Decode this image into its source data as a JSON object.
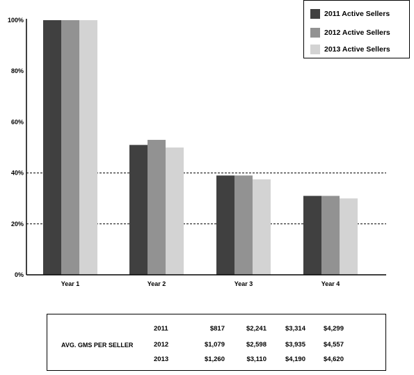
{
  "chart_data": {
    "type": "bar",
    "categories": [
      "Year 1",
      "Year 2",
      "Year 3",
      "Year 4"
    ],
    "ylim": [
      0,
      100
    ],
    "yticks": [
      "0%",
      "20%",
      "40%",
      "60%",
      "80%",
      "100%"
    ],
    "grid_lines_at": [
      20,
      40
    ],
    "legend_position": "top-right",
    "series": [
      {
        "name": "2011 Active Sellers",
        "color": "#404040",
        "values": [
          100,
          51,
          39,
          31
        ]
      },
      {
        "name": "2012  Active Sellers",
        "color": "#929292",
        "values": [
          100,
          53,
          39,
          31
        ]
      },
      {
        "name": "2013 Active Sellers",
        "color": "#d3d3d3",
        "values": [
          100,
          50,
          37.5,
          30
        ]
      }
    ]
  },
  "gms_table": {
    "title": "AVG. GMS PER SELLER",
    "rows": [
      {
        "year": "2011",
        "values": [
          "$817",
          "$2,241",
          "$3,314",
          "$4,299"
        ]
      },
      {
        "year": "2012",
        "values": [
          "$1,079",
          "$2,598",
          "$3,935",
          "$4,557"
        ]
      },
      {
        "year": "2013",
        "values": [
          "$1,260",
          "$3,110",
          "$4,190",
          "$4,620"
        ]
      }
    ]
  }
}
